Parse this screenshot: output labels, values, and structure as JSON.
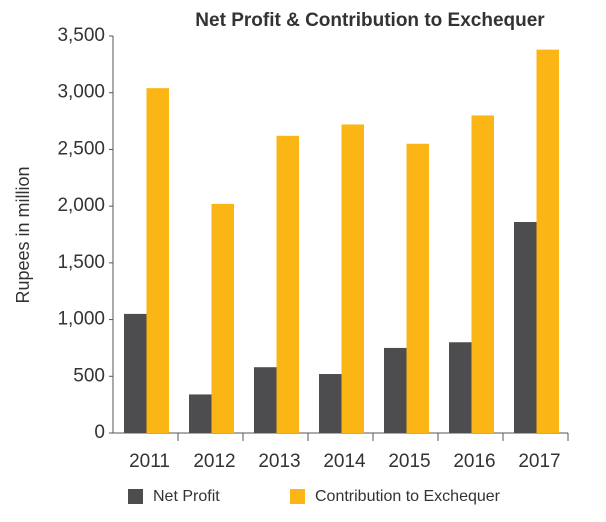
{
  "chart_data": {
    "type": "bar",
    "title": "Net Profit & Contribution to Exchequer",
    "y_label": "Rupees in million",
    "categories": [
      "2011",
      "2012",
      "2013",
      "2014",
      "2015",
      "2016",
      "2017"
    ],
    "series": [
      {
        "name": "Net Profit",
        "color": "#4d4d4f",
        "values": [
          1050,
          340,
          580,
          520,
          750,
          800,
          1860
        ]
      },
      {
        "name": "Contribution to Exchequer",
        "color": "#fbb514",
        "values": [
          3040,
          2020,
          2620,
          2720,
          2550,
          2800,
          3380
        ]
      }
    ],
    "ylim": [
      0,
      3500
    ],
    "yticks": [
      0,
      500,
      {
        "value": 1000,
        "label": "1,000"
      },
      {
        "value": 1500,
        "label": "1,500"
      },
      {
        "value": 2000,
        "label": "2,000"
      },
      {
        "value": 2500,
        "label": "2,500"
      },
      {
        "value": 3000,
        "label": "3,000"
      },
      {
        "value": 3500,
        "label": "3,500"
      }
    ],
    "legend": "bottom"
  }
}
